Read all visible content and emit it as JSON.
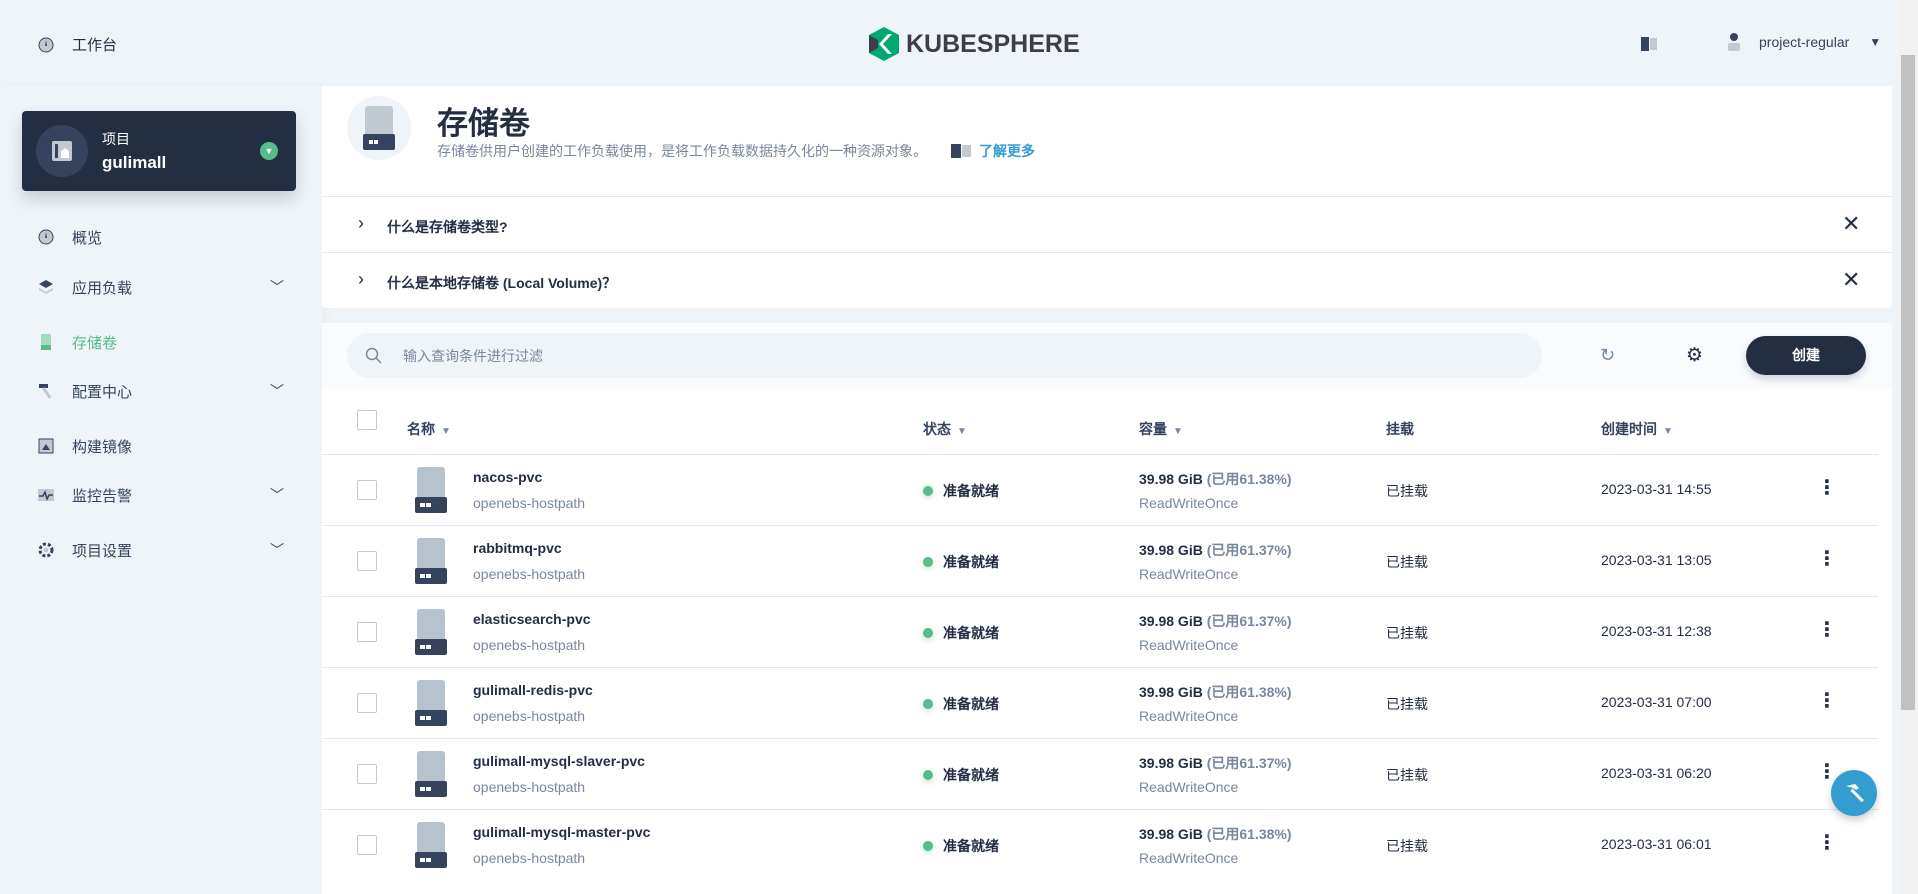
{
  "topbar": {
    "workbench_label": "工作台",
    "logo_text": "KUBESPHERE",
    "user": "project-regular",
    "brand_color": "#00a971"
  },
  "project_card": {
    "label": "项目",
    "name": "gulimall"
  },
  "sidebar": {
    "items": [
      {
        "label": "概览",
        "icon": "dashboard-icon",
        "expandable": false
      },
      {
        "label": "应用负载",
        "icon": "appcenter-icon",
        "expandable": true
      },
      {
        "label": "存储卷",
        "icon": "storage-icon",
        "expandable": false,
        "active": true
      },
      {
        "label": "配置中心",
        "icon": "hammer-icon",
        "expandable": true
      },
      {
        "label": "构建镜像",
        "icon": "image-icon",
        "expandable": false
      },
      {
        "label": "监控告警",
        "icon": "monitor-icon",
        "expandable": true
      },
      {
        "label": "项目设置",
        "icon": "gear-icon",
        "expandable": true
      }
    ]
  },
  "intro": {
    "title": "存储卷",
    "description": "存储卷供用户创建的工作负载使用，是将工作负载数据持久化的一种资源对象。",
    "learn_more": "了解更多"
  },
  "tips": [
    {
      "label": "什么是存储卷类型?"
    },
    {
      "label": "什么是本地存储卷 (Local Volume)？"
    }
  ],
  "toolbar": {
    "search_placeholder": "输入查询条件进行过滤",
    "create_label": "创建"
  },
  "table": {
    "headers": {
      "name": "名称",
      "status": "状态",
      "capacity": "容量",
      "mount": "挂载",
      "created": "创建时间"
    },
    "rows": [
      {
        "name": "nacos-pvc",
        "storage_class": "openebs-hostpath",
        "status": "准备就绪",
        "capacity": "39.98 GiB",
        "used": "(已用61.38%)",
        "access_mode": "ReadWriteOnce",
        "mount": "已挂载",
        "created": "2023-03-31 14:55"
      },
      {
        "name": "rabbitmq-pvc",
        "storage_class": "openebs-hostpath",
        "status": "准备就绪",
        "capacity": "39.98 GiB",
        "used": "(已用61.37%)",
        "access_mode": "ReadWriteOnce",
        "mount": "已挂载",
        "created": "2023-03-31 13:05"
      },
      {
        "name": "elasticsearch-pvc",
        "storage_class": "openebs-hostpath",
        "status": "准备就绪",
        "capacity": "39.98 GiB",
        "used": "(已用61.37%)",
        "access_mode": "ReadWriteOnce",
        "mount": "已挂载",
        "created": "2023-03-31 12:38"
      },
      {
        "name": "gulimall-redis-pvc",
        "storage_class": "openebs-hostpath",
        "status": "准备就绪",
        "capacity": "39.98 GiB",
        "used": "(已用61.38%)",
        "access_mode": "ReadWriteOnce",
        "mount": "已挂载",
        "created": "2023-03-31 07:00"
      },
      {
        "name": "gulimall-mysql-slaver-pvc",
        "storage_class": "openebs-hostpath",
        "status": "准备就绪",
        "capacity": "39.98 GiB",
        "used": "(已用61.37%)",
        "access_mode": "ReadWriteOnce",
        "mount": "已挂载",
        "created": "2023-03-31 06:20"
      },
      {
        "name": "gulimall-mysql-master-pvc",
        "storage_class": "openebs-hostpath",
        "status": "准备就绪",
        "capacity": "39.98 GiB",
        "used": "(已用61.38%)",
        "access_mode": "ReadWriteOnce",
        "mount": "已挂载",
        "created": "2023-03-31 06:01"
      }
    ]
  }
}
